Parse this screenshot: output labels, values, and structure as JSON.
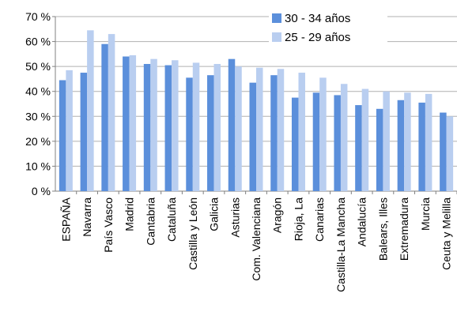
{
  "chart_data": {
    "type": "bar",
    "categories": [
      "ESPAÑA",
      "Navarra",
      "País Vasco",
      "Madrid",
      "Cantabria",
      "Cataluña",
      "Castilla y León",
      "Galicia",
      "Asturias",
      "Com. Valenciana",
      "Aragón",
      "Rioja, La",
      "Canarias",
      "Castilla-La Mancha",
      "Andalucía",
      "Balears, Illes",
      "Extremadura",
      "Murcia",
      "Ceuta y Melilla"
    ],
    "series": [
      {
        "name": "30 - 34 años",
        "color": "#5B8FDB",
        "values": [
          44.5,
          47.5,
          59,
          54,
          51,
          50.5,
          45.5,
          46.5,
          53,
          43.5,
          46.5,
          37.5,
          39.5,
          38.5,
          34.5,
          33,
          36.5,
          35.5,
          31.5
        ]
      },
      {
        "name": "25 - 29 años",
        "color": "#B9CEF0",
        "values": [
          48.5,
          64.5,
          63,
          54.5,
          53,
          52.5,
          51.5,
          51,
          50,
          49.5,
          49,
          47.5,
          45.5,
          43,
          41,
          40,
          39.5,
          39,
          30
        ]
      }
    ],
    "y_ticks": [
      "0 %",
      "10 %",
      "20 %",
      "30 %",
      "40 %",
      "50 %",
      "60 %",
      "70 %"
    ],
    "ylim": [
      0,
      70
    ],
    "grid": true,
    "legend_position": "top-right"
  }
}
